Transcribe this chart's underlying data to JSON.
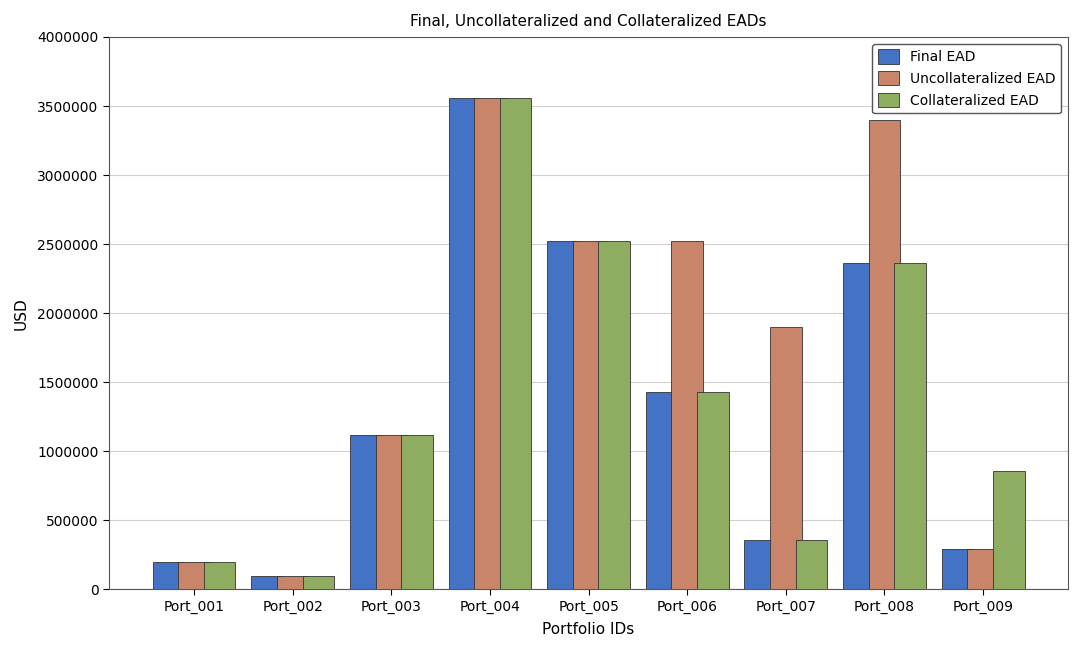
{
  "title": "Final, Uncollateralized and Collateralized EADs",
  "xlabel": "Portfolio IDs",
  "ylabel": "USD",
  "categories": [
    "Port_001",
    "Port_002",
    "Port_003",
    "Port_004",
    "Port_005",
    "Port_006",
    "Port_007",
    "Port_008",
    "Port_009"
  ],
  "final_ead": [
    200000,
    95000,
    1120000,
    3560000,
    2520000,
    1430000,
    360000,
    2360000,
    295000
  ],
  "uncollateralized_ead": [
    200000,
    95000,
    1120000,
    3560000,
    2520000,
    2520000,
    1900000,
    3400000,
    295000
  ],
  "collateralized_ead": [
    200000,
    95000,
    1120000,
    3560000,
    2520000,
    1430000,
    360000,
    2360000,
    860000
  ],
  "color_final": "#4472c4",
  "color_uncoll": "#c8856a",
  "color_coll": "#8fad60",
  "ylim": [
    0,
    4000000
  ],
  "yticks": [
    0,
    500000,
    1000000,
    1500000,
    2000000,
    2500000,
    3000000,
    3500000,
    4000000
  ],
  "legend_labels": [
    "Final EAD",
    "Uncollateralized EAD",
    "Collateralized EAD"
  ],
  "background_color": "#ffffff",
  "grid_color": "#d0d0d0"
}
